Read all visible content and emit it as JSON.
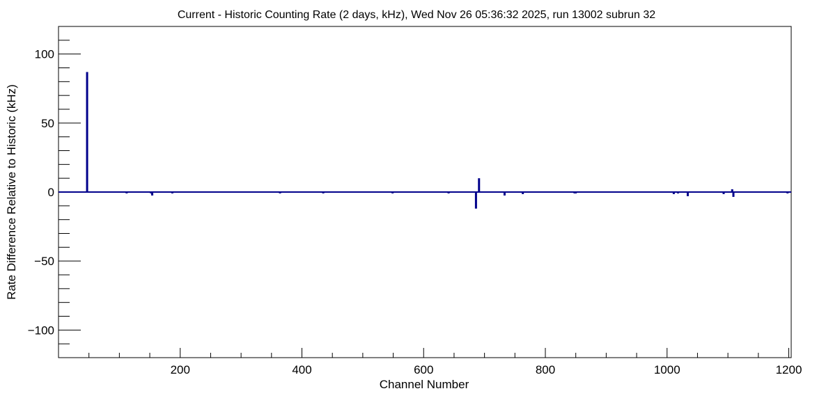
{
  "chart_data": {
    "type": "bar",
    "title": "Current - Historic Counting Rate (2 days, kHz), Wed Nov 26 05:36:32 2025, run 13002 subrun 32",
    "xlabel": "Channel Number",
    "ylabel": "Rate Difference Relative to Historic (kHz)",
    "xlim": [
      0,
      1204
    ],
    "ylim": [
      -120,
      120
    ],
    "x_ticks": [
      200,
      400,
      600,
      800,
      1000,
      1200
    ],
    "x_tick_labels": [
      "200",
      "400",
      "600",
      "800",
      "1000",
      "1200"
    ],
    "y_ticks": [
      -100,
      -50,
      0,
      50,
      100
    ],
    "y_tick_labels": [
      "−100",
      "−50",
      "0",
      "50",
      "100"
    ],
    "grid": false,
    "legend": "none",
    "line_color": "#00008b",
    "baseline": 0,
    "series": [
      {
        "x": [
          47,
          112,
          152,
          154,
          187,
          364,
          435,
          480,
          549,
          641,
          686,
          691,
          733,
          763,
          848,
          850,
          1011,
          1018,
          1034,
          1093,
          1107,
          1109,
          1198
        ],
        "values": [
          87,
          -1,
          -1,
          -2.5,
          -1,
          -1,
          -1,
          0.5,
          -1,
          -1,
          -12,
          10,
          -2.5,
          -1.5,
          -1,
          -1,
          -1.5,
          -1,
          -3,
          -1.5,
          2,
          -3.5,
          -1
        ]
      }
    ]
  }
}
